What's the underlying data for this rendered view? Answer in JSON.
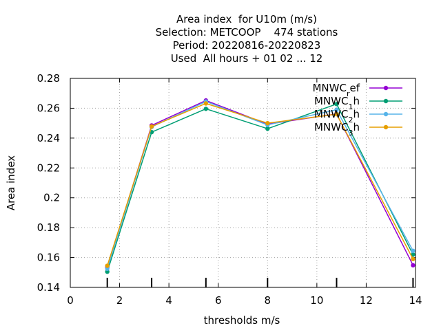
{
  "chart_data": {
    "type": "line",
    "title_lines": [
      "Area index  for U10m (m/s)",
      "Selection: METCOOP    474 stations",
      "Period: 20220816-20220823",
      "Used  All hours + 01 02 ... 12"
    ],
    "xlabel": "thresholds m/s",
    "ylabel": "Area index",
    "xlim": [
      0,
      14
    ],
    "ylim": [
      0.14,
      0.28
    ],
    "xticks": [
      0,
      2,
      4,
      6,
      8,
      10,
      12,
      14
    ],
    "yticks": [
      0.14,
      0.16,
      0.18,
      0.2,
      0.22,
      0.24,
      0.26,
      0.28
    ],
    "ytick_labels": [
      "0.14",
      "0.16",
      "0.18",
      "0.2",
      "0.22",
      "0.24",
      "0.26",
      "0.28"
    ],
    "threshold_marks": [
      1.5,
      3.3,
      5.5,
      8,
      10.8,
      13.9
    ],
    "grid": true,
    "legend_position": "top-right",
    "x": [
      1.5,
      3.3,
      5.5,
      8,
      10.8,
      13.9
    ],
    "series": [
      {
        "name": "MNWC_ref",
        "label_main": "MNWC",
        "label_sub": "r",
        "label_rest": "ef",
        "color": "#9400d3",
        "values": [
          0.1535,
          0.2485,
          0.2652,
          0.2493,
          0.2562,
          0.1548
        ]
      },
      {
        "name": "MNWC_1h",
        "label_main": "MNWC",
        "label_sub": "1",
        "label_rest": "h",
        "color": "#009e73",
        "values": [
          0.1505,
          0.244,
          0.2596,
          0.2463,
          0.2628,
          0.162
        ]
      },
      {
        "name": "MNWC_2h",
        "label_main": "MNWC",
        "label_sub": "2",
        "label_rest": "h",
        "color": "#56b4e9",
        "values": [
          0.1525,
          0.2475,
          0.2645,
          0.2488,
          0.259,
          0.1645
        ]
      },
      {
        "name": "MNWC_3h",
        "label_main": "MNWC",
        "label_sub": "3",
        "label_rest": "h",
        "color": "#e69f00",
        "values": [
          0.1545,
          0.2478,
          0.2632,
          0.25,
          0.256,
          0.159
        ]
      }
    ]
  }
}
